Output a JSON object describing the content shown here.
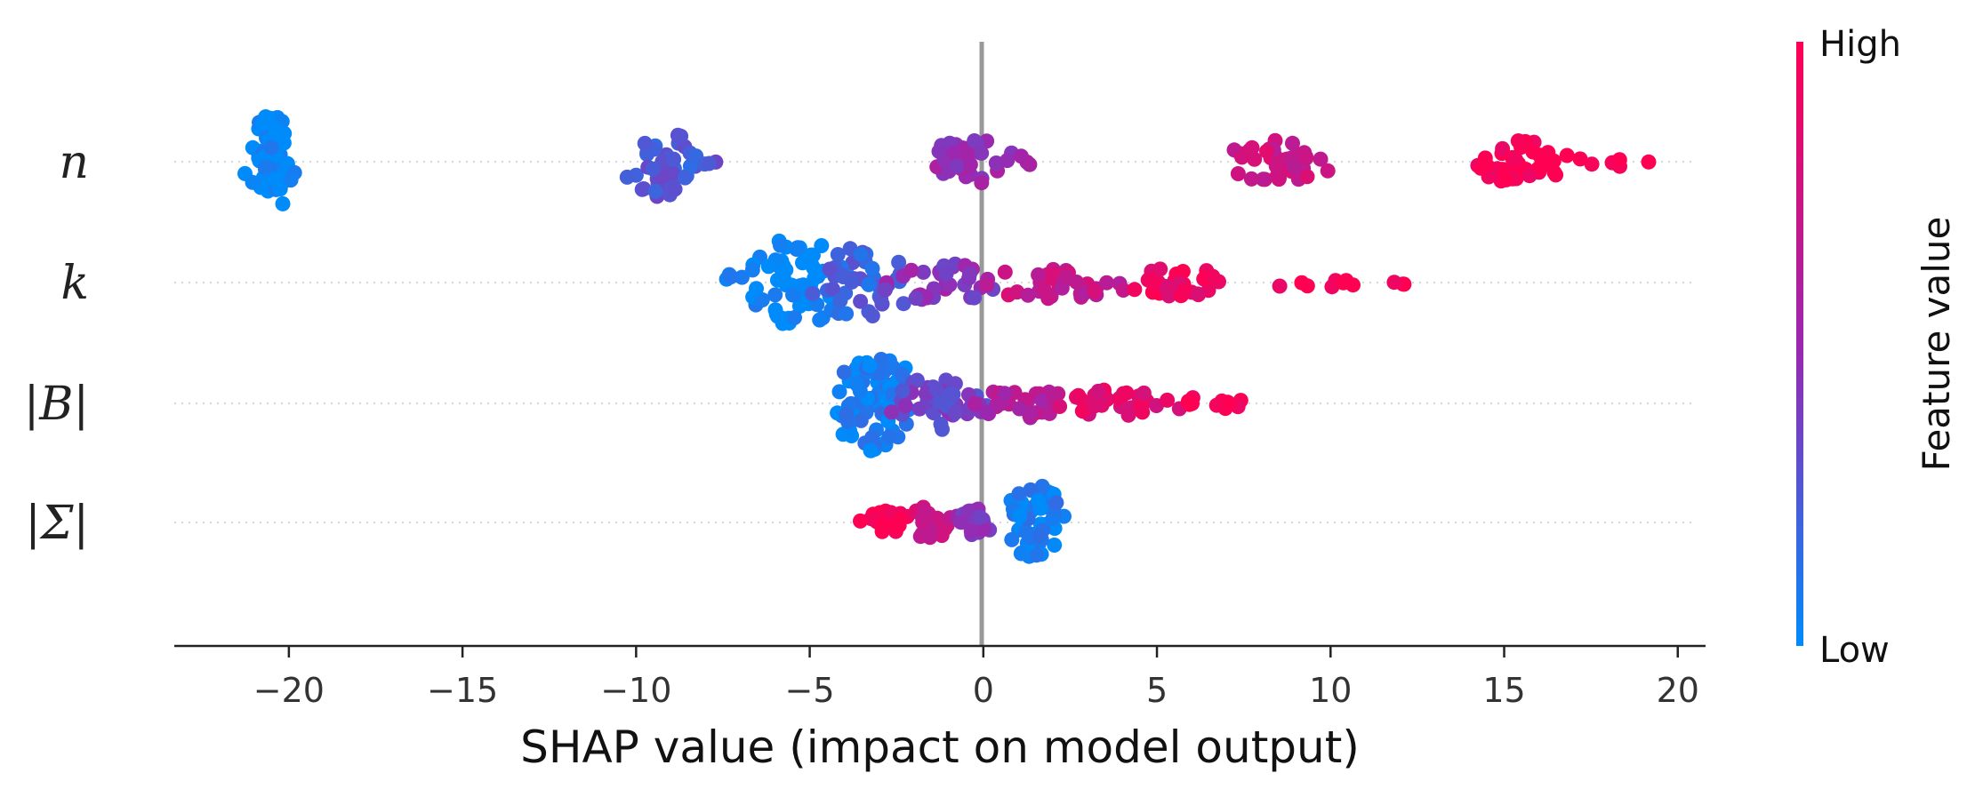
{
  "chart_data": {
    "type": "scatter",
    "subtype": "shap-beeswarm",
    "xlabel": "SHAP value (impact on model output)",
    "xlim": [
      -23.3,
      20.8
    ],
    "xticks": [
      -20,
      -15,
      -10,
      -5,
      0,
      5,
      10,
      15,
      20
    ],
    "xtick_labels": [
      "−20",
      "−15",
      "−10",
      "−5",
      "0",
      "5",
      "10",
      "15",
      "20"
    ],
    "features": [
      {
        "name": "n",
        "clusters": [
          {
            "center": -20.5,
            "spread": 0.55,
            "count": 70,
            "value": 0.0,
            "max_h": 1.0
          },
          {
            "center": -9.2,
            "spread": 0.9,
            "count": 40,
            "value": 0.25,
            "max_h": 0.75
          },
          {
            "center": -8.1,
            "spread": 0.4,
            "count": 4,
            "value": 0.25,
            "max_h": 0.15
          },
          {
            "center": -0.3,
            "spread": 1.1,
            "count": 40,
            "value": 0.5,
            "max_h": 0.45
          },
          {
            "center": 8.5,
            "spread": 1.2,
            "count": 40,
            "value": 0.75,
            "max_h": 0.45
          },
          {
            "center": 15.6,
            "spread": 1.3,
            "count": 45,
            "value": 1.0,
            "max_h": 0.45
          },
          {
            "center": 18.2,
            "spread": 0.6,
            "count": 5,
            "value": 1.0,
            "max_h": 0.1
          }
        ]
      },
      {
        "name": "k",
        "clusters": [
          {
            "center": -5.5,
            "spread": 1.2,
            "count": 70,
            "value": 0.0,
            "max_h": 0.95
          },
          {
            "center": -3.5,
            "spread": 1.1,
            "count": 40,
            "value": 0.2,
            "max_h": 0.75
          },
          {
            "center": -1.2,
            "spread": 1.3,
            "count": 35,
            "value": 0.45,
            "max_h": 0.4
          },
          {
            "center": 2.0,
            "spread": 1.6,
            "count": 35,
            "value": 0.7,
            "max_h": 0.35
          },
          {
            "center": 5.5,
            "spread": 1.4,
            "count": 30,
            "value": 0.9,
            "max_h": 0.3
          },
          {
            "center": 9.5,
            "spread": 1.2,
            "count": 8,
            "value": 1.0,
            "max_h": 0.1
          },
          {
            "center": 12.0,
            "spread": 0.4,
            "count": 3,
            "value": 1.0,
            "max_h": 0.05
          }
        ]
      },
      {
        "name": "|B|",
        "clusters": [
          {
            "center": -3.1,
            "spread": 1.0,
            "count": 80,
            "value": 0.05,
            "max_h": 1.0
          },
          {
            "center": -1.3,
            "spread": 1.0,
            "count": 45,
            "value": 0.35,
            "max_h": 0.55
          },
          {
            "center": 1.2,
            "spread": 1.2,
            "count": 35,
            "value": 0.6,
            "max_h": 0.3
          },
          {
            "center": 4.0,
            "spread": 1.2,
            "count": 30,
            "value": 0.85,
            "max_h": 0.3
          },
          {
            "center": 6.5,
            "spread": 0.7,
            "count": 12,
            "value": 1.0,
            "max_h": 0.15
          }
        ]
      },
      {
        "name": "|Σ|",
        "clusters": [
          {
            "center": -2.8,
            "spread": 0.5,
            "count": 25,
            "value": 1.0,
            "max_h": 0.25
          },
          {
            "center": -1.5,
            "spread": 0.5,
            "count": 25,
            "value": 0.75,
            "max_h": 0.35
          },
          {
            "center": -0.2,
            "spread": 0.5,
            "count": 22,
            "value": 0.45,
            "max_h": 0.3
          },
          {
            "center": 1.5,
            "spread": 0.6,
            "count": 55,
            "value": 0.05,
            "max_h": 0.85
          }
        ]
      }
    ],
    "colorbar": {
      "title": "Feature value",
      "high_label": "High",
      "low_label": "Low",
      "low_color": "#008bfb",
      "mid_color": "#9c27b0",
      "high_color": "#ff0052"
    }
  }
}
